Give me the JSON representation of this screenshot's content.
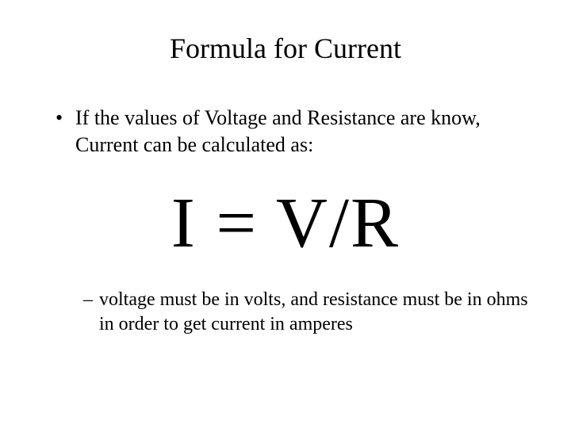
{
  "title": "Formula for Current",
  "bullet_text": "If the values of Voltage and Resistance are know, Current can be calculated as:",
  "formula": "I = V/R",
  "dash_text": "voltage must be in volts, and resistance must be in ohms in order to get current in amperes",
  "colors": {
    "background": "#ffffff",
    "text": "#000000"
  },
  "fonts": {
    "family": "Times New Roman",
    "title_size": 36,
    "body_size": 26,
    "formula_size": 90,
    "sub_size": 24
  }
}
